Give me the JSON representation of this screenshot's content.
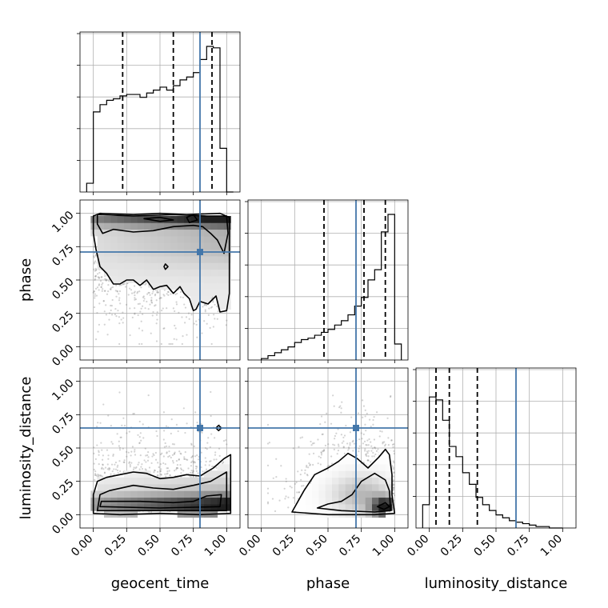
{
  "chart_data": {
    "type": "corner",
    "parameters": [
      "geocent_time",
      "phase",
      "luminosity_distance"
    ],
    "axis_labels": {
      "geocent_time": "geocent_time",
      "phase": "phase",
      "luminosity_distance": "luminosity_distance"
    },
    "tick_labels": [
      "0.00",
      "0.25",
      "0.50",
      "0.75",
      "1.00"
    ],
    "axis_range": [
      -0.1,
      1.1
    ],
    "grid": true,
    "truth_color": "#4477aa",
    "line_color": "#000000",
    "truths": {
      "geocent_time": 0.8,
      "phase": 0.71,
      "luminosity_distance": 0.65
    },
    "quantiles": {
      "geocent_time": [
        0.22,
        0.6,
        0.89
      ],
      "phase": [
        0.47,
        0.77,
        0.93
      ],
      "luminosity_distance": [
        0.05,
        0.15,
        0.36
      ]
    },
    "histograms": {
      "geocent_time": {
        "edges": [
          -0.05,
          0.0,
          0.05,
          0.1,
          0.15,
          0.2,
          0.25,
          0.3,
          0.35,
          0.4,
          0.45,
          0.5,
          0.55,
          0.6,
          0.65,
          0.7,
          0.75,
          0.8,
          0.85,
          0.9,
          0.95,
          1.0,
          1.05
        ],
        "counts": [
          0.06,
          0.55,
          0.6,
          0.63,
          0.64,
          0.66,
          0.67,
          0.67,
          0.65,
          0.68,
          0.7,
          0.72,
          0.7,
          0.73,
          0.77,
          0.79,
          0.82,
          0.91,
          1.0,
          0.99,
          0.3,
          0.0
        ]
      },
      "phase": {
        "edges": [
          0.0,
          0.05,
          0.1,
          0.15,
          0.2,
          0.25,
          0.3,
          0.35,
          0.4,
          0.45,
          0.5,
          0.55,
          0.6,
          0.65,
          0.7,
          0.75,
          0.8,
          0.85,
          0.9,
          0.95,
          1.0,
          1.05
        ],
        "counts": [
          0.01,
          0.03,
          0.05,
          0.07,
          0.09,
          0.12,
          0.14,
          0.15,
          0.17,
          0.19,
          0.21,
          0.24,
          0.27,
          0.31,
          0.37,
          0.43,
          0.55,
          0.62,
          0.88,
          1.0,
          0.11
        ]
      },
      "luminosity_distance": {
        "edges": [
          -0.05,
          0.0,
          0.05,
          0.1,
          0.15,
          0.2,
          0.25,
          0.3,
          0.35,
          0.4,
          0.45,
          0.5,
          0.55,
          0.6,
          0.65,
          0.7,
          0.75,
          0.8,
          0.85,
          0.9,
          0.95,
          1.0
        ],
        "counts": [
          0.16,
          0.9,
          0.88,
          0.74,
          0.56,
          0.49,
          0.38,
          0.3,
          0.21,
          0.16,
          0.12,
          0.09,
          0.07,
          0.05,
          0.04,
          0.03,
          0.02,
          0.01,
          0.01,
          0.0,
          0.0
        ]
      }
    },
    "contours": {
      "phase_vs_geocent_time": [
        [
          [
            0.0,
            0.98
          ],
          [
            0.05,
            1.0
          ],
          [
            0.3,
            0.99
          ],
          [
            0.5,
            1.0
          ],
          [
            0.7,
            0.99
          ],
          [
            0.95,
            1.0
          ],
          [
            1.02,
            0.97
          ],
          [
            1.02,
            0.4
          ],
          [
            1.0,
            0.27
          ],
          [
            0.95,
            0.26
          ],
          [
            0.92,
            0.38
          ],
          [
            0.86,
            0.32
          ],
          [
            0.8,
            0.34
          ],
          [
            0.77,
            0.28
          ],
          [
            0.75,
            0.27
          ],
          [
            0.72,
            0.36
          ],
          [
            0.68,
            0.4
          ],
          [
            0.65,
            0.45
          ],
          [
            0.6,
            0.4
          ],
          [
            0.55,
            0.46
          ],
          [
            0.5,
            0.45
          ],
          [
            0.45,
            0.43
          ],
          [
            0.4,
            0.5
          ],
          [
            0.35,
            0.46
          ],
          [
            0.3,
            0.5
          ],
          [
            0.25,
            0.5
          ],
          [
            0.2,
            0.47
          ],
          [
            0.15,
            0.47
          ],
          [
            0.1,
            0.55
          ],
          [
            0.05,
            0.6
          ],
          [
            0.02,
            0.73
          ],
          [
            0.0,
            0.85
          ],
          [
            0.0,
            0.98
          ]
        ],
        [
          [
            0.03,
            0.99
          ],
          [
            0.3,
            0.98
          ],
          [
            0.6,
            0.99
          ],
          [
            0.85,
            0.98
          ],
          [
            1.0,
            0.98
          ],
          [
            1.01,
            0.85
          ],
          [
            0.98,
            0.7
          ],
          [
            0.93,
            0.8
          ],
          [
            0.88,
            0.85
          ],
          [
            0.82,
            0.9
          ],
          [
            0.75,
            0.91
          ],
          [
            0.6,
            0.9
          ],
          [
            0.45,
            0.87
          ],
          [
            0.3,
            0.86
          ],
          [
            0.15,
            0.88
          ],
          [
            0.07,
            0.85
          ],
          [
            0.03,
            0.92
          ],
          [
            0.03,
            0.99
          ]
        ],
        [
          [
            0.38,
            0.96
          ],
          [
            0.5,
            0.97
          ],
          [
            0.6,
            0.95
          ],
          [
            0.5,
            0.94
          ],
          [
            0.38,
            0.96
          ]
        ],
        [
          [
            0.7,
            0.97
          ],
          [
            0.75,
            0.99
          ],
          [
            0.78,
            0.95
          ],
          [
            0.72,
            0.93
          ],
          [
            0.7,
            0.97
          ]
        ],
        [
          [
            0.53,
            0.6
          ],
          [
            0.54,
            0.62
          ],
          [
            0.56,
            0.6
          ],
          [
            0.54,
            0.58
          ],
          [
            0.53,
            0.6
          ]
        ]
      ],
      "luminosity_distance_vs_geocent_time": [
        [
          [
            0.0,
            0.01
          ],
          [
            0.2,
            0.0
          ],
          [
            0.5,
            0.01
          ],
          [
            0.8,
            0.0
          ],
          [
            1.03,
            0.01
          ],
          [
            1.03,
            0.45
          ],
          [
            0.98,
            0.42
          ],
          [
            0.9,
            0.35
          ],
          [
            0.8,
            0.29
          ],
          [
            0.7,
            0.3
          ],
          [
            0.6,
            0.28
          ],
          [
            0.5,
            0.27
          ],
          [
            0.4,
            0.31
          ],
          [
            0.3,
            0.32
          ],
          [
            0.2,
            0.3
          ],
          [
            0.1,
            0.28
          ],
          [
            0.03,
            0.25
          ],
          [
            0.0,
            0.15
          ],
          [
            0.0,
            0.01
          ]
        ],
        [
          [
            0.03,
            0.03
          ],
          [
            0.5,
            0.03
          ],
          [
            1.0,
            0.03
          ],
          [
            1.0,
            0.32
          ],
          [
            0.88,
            0.25
          ],
          [
            0.75,
            0.22
          ],
          [
            0.6,
            0.19
          ],
          [
            0.45,
            0.2
          ],
          [
            0.3,
            0.22
          ],
          [
            0.12,
            0.18
          ],
          [
            0.05,
            0.15
          ],
          [
            0.03,
            0.03
          ]
        ],
        [
          [
            0.05,
            0.06
          ],
          [
            0.5,
            0.05
          ],
          [
            0.95,
            0.06
          ],
          [
            0.96,
            0.15
          ],
          [
            0.85,
            0.14
          ],
          [
            0.75,
            0.1
          ],
          [
            0.6,
            0.09
          ],
          [
            0.35,
            0.1
          ],
          [
            0.15,
            0.1
          ],
          [
            0.06,
            0.1
          ],
          [
            0.05,
            0.06
          ]
        ],
        [
          [
            0.92,
            0.65
          ],
          [
            0.94,
            0.67
          ],
          [
            0.96,
            0.65
          ],
          [
            0.94,
            0.63
          ],
          [
            0.92,
            0.65
          ]
        ]
      ],
      "luminosity_distance_vs_phase": [
        [
          [
            0.23,
            0.02
          ],
          [
            0.5,
            0.0
          ],
          [
            0.85,
            0.0
          ],
          [
            1.0,
            0.01
          ],
          [
            0.98,
            0.15
          ],
          [
            0.98,
            0.3
          ],
          [
            0.96,
            0.45
          ],
          [
            0.93,
            0.49
          ],
          [
            0.88,
            0.43
          ],
          [
            0.8,
            0.35
          ],
          [
            0.72,
            0.42
          ],
          [
            0.65,
            0.46
          ],
          [
            0.58,
            0.4
          ],
          [
            0.5,
            0.35
          ],
          [
            0.4,
            0.3
          ],
          [
            0.32,
            0.18
          ],
          [
            0.23,
            0.02
          ]
        ],
        [
          [
            0.42,
            0.05
          ],
          [
            0.6,
            0.03
          ],
          [
            0.85,
            0.02
          ],
          [
            0.97,
            0.03
          ],
          [
            0.96,
            0.18
          ],
          [
            0.93,
            0.26
          ],
          [
            0.85,
            0.31
          ],
          [
            0.75,
            0.25
          ],
          [
            0.68,
            0.15
          ],
          [
            0.6,
            0.1
          ],
          [
            0.5,
            0.08
          ],
          [
            0.42,
            0.05
          ]
        ],
        [
          [
            0.87,
            0.06
          ],
          [
            0.92,
            0.04
          ],
          [
            0.96,
            0.06
          ],
          [
            0.93,
            0.09
          ],
          [
            0.87,
            0.06
          ]
        ]
      ]
    }
  }
}
